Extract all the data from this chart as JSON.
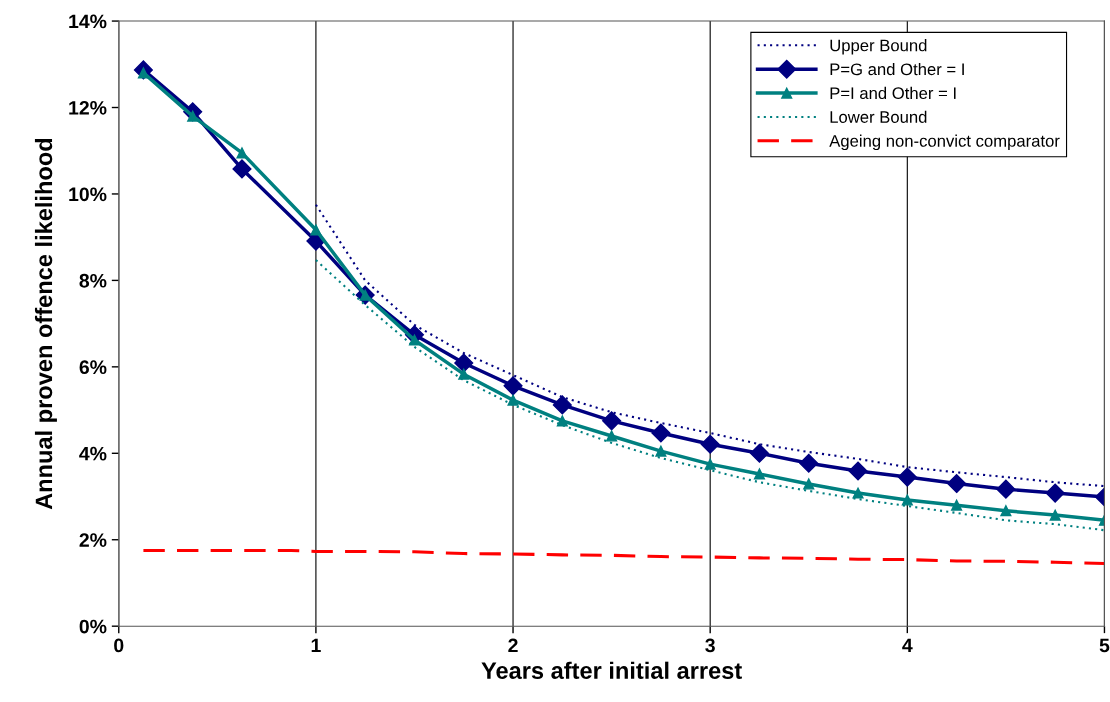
{
  "chart_data": {
    "type": "line",
    "xlabel": "Years after initial arrest",
    "ylabel": "Annual proven offence likelihood",
    "xlim": [
      0,
      5
    ],
    "xticks": [
      0,
      1,
      2,
      3,
      4,
      5
    ],
    "ylim": [
      0,
      14
    ],
    "yticks": [
      {
        "value": 0,
        "label": "0%"
      },
      {
        "value": 2,
        "label": "2%"
      },
      {
        "value": 4,
        "label": "4%"
      },
      {
        "value": 6,
        "label": "6%"
      },
      {
        "value": 8,
        "label": "8%"
      },
      {
        "value": 10,
        "label": "10%"
      },
      {
        "value": 12,
        "label": "12%"
      },
      {
        "value": 14,
        "label": "14%"
      }
    ],
    "grid": "x",
    "legend": "top right",
    "series": [
      {
        "name": "Upper Bound",
        "color": "#000080",
        "line_style": "dotted",
        "marker": "none",
        "x": [
          1,
          1.25,
          1.5,
          1.75,
          2,
          2.25,
          2.5,
          2.75,
          3,
          3.25,
          3.5,
          3.75,
          4,
          4.25,
          4.5,
          4.75,
          5
        ],
        "values": [
          9.75,
          8.0,
          6.97,
          6.32,
          5.81,
          5.3,
          4.95,
          4.7,
          4.47,
          4.21,
          4.03,
          3.87,
          3.68,
          3.56,
          3.45,
          3.33,
          3.24
        ]
      },
      {
        "name": "P=G and Other = I",
        "color": "#000080",
        "line_style": "solid",
        "marker": "diamond",
        "x": [
          0.125,
          0.375,
          0.625,
          1,
          1.25,
          1.5,
          1.75,
          2,
          2.25,
          2.5,
          2.75,
          3,
          3.25,
          3.5,
          3.75,
          4,
          4.25,
          4.5,
          4.75,
          5
        ],
        "values": [
          12.87,
          11.9,
          10.58,
          8.91,
          7.66,
          6.74,
          6.09,
          5.56,
          5.12,
          4.75,
          4.47,
          4.21,
          4.0,
          3.77,
          3.59,
          3.45,
          3.3,
          3.17,
          3.08,
          2.99
        ]
      },
      {
        "name": "P=I and Other = I",
        "color": "#008080",
        "line_style": "solid",
        "marker": "triangle",
        "x": [
          0.125,
          0.375,
          0.625,
          1,
          1.25,
          1.5,
          1.75,
          2,
          2.25,
          2.5,
          2.75,
          3,
          3.25,
          3.5,
          3.75,
          4,
          4.25,
          4.5,
          4.75,
          5
        ],
        "values": [
          12.8,
          11.8,
          10.95,
          9.17,
          7.66,
          6.62,
          5.83,
          5.23,
          4.75,
          4.4,
          4.05,
          3.75,
          3.52,
          3.29,
          3.08,
          2.92,
          2.8,
          2.67,
          2.57,
          2.45
        ]
      },
      {
        "name": "Lower Bound",
        "color": "#008080",
        "line_style": "dotted",
        "marker": "none",
        "x": [
          1,
          1.25,
          1.5,
          1.75,
          2,
          2.25,
          2.5,
          2.75,
          3,
          3.25,
          3.5,
          3.75,
          4,
          4.25,
          4.5,
          4.75,
          5
        ],
        "values": [
          8.47,
          7.43,
          6.46,
          5.69,
          5.12,
          4.65,
          4.24,
          3.89,
          3.61,
          3.33,
          3.13,
          2.94,
          2.78,
          2.62,
          2.45,
          2.36,
          2.22
        ]
      },
      {
        "name": "Ageing non-convict comparator",
        "color": "#ff0000",
        "line_style": "dashed",
        "marker": "none",
        "x": [
          0.125,
          0.375,
          0.625,
          0.875,
          1,
          1.25,
          1.5,
          1.75,
          2,
          2.25,
          2.5,
          2.75,
          3,
          3.25,
          3.5,
          3.75,
          4,
          4.25,
          4.5,
          4.75,
          5
        ],
        "values": [
          1.75,
          1.75,
          1.75,
          1.75,
          1.73,
          1.73,
          1.72,
          1.68,
          1.67,
          1.65,
          1.64,
          1.61,
          1.6,
          1.58,
          1.57,
          1.55,
          1.54,
          1.51,
          1.5,
          1.48,
          1.45
        ]
      }
    ]
  }
}
